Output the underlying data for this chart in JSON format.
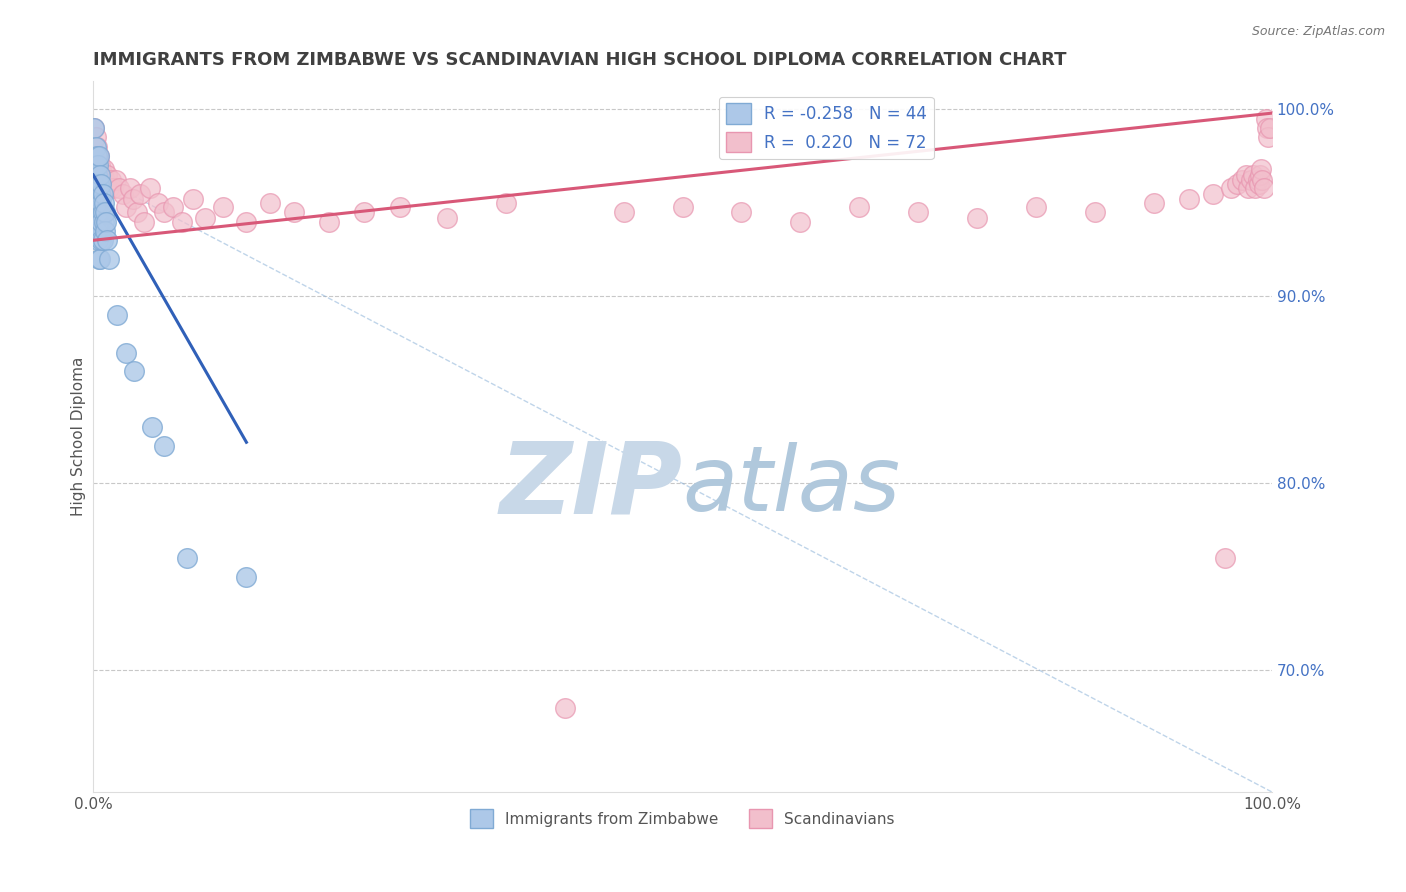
{
  "title": "IMMIGRANTS FROM ZIMBABWE VS SCANDINAVIAN HIGH SCHOOL DIPLOMA CORRELATION CHART",
  "source_text": "Source: ZipAtlas.com",
  "ylabel": "High School Diploma",
  "xlim": [
    0.0,
    1.0
  ],
  "ylim": [
    0.635,
    1.015
  ],
  "yticks": [
    0.7,
    0.8,
    0.9,
    1.0
  ],
  "ytick_labels": [
    "70.0%",
    "80.0%",
    "90.0%",
    "100.0%"
  ],
  "xtick_labels_left": "0.0%",
  "xtick_labels_right": "100.0%",
  "legend_R1": "-0.258",
  "legend_N1": "44",
  "legend_R2": "0.220",
  "legend_N2": "72",
  "blue_color": "#adc8e8",
  "blue_edge_color": "#80aad4",
  "pink_color": "#f2bfcc",
  "pink_edge_color": "#e896b0",
  "blue_line_color": "#3060b8",
  "pink_line_color": "#d85878",
  "title_color": "#404040",
  "watermark_zip_color": "#c8d8e8",
  "watermark_atlas_color": "#b0c8dc",
  "background_color": "#ffffff",
  "blue_scatter_x": [
    0.001,
    0.001,
    0.002,
    0.002,
    0.002,
    0.003,
    0.003,
    0.003,
    0.003,
    0.004,
    0.004,
    0.004,
    0.004,
    0.005,
    0.005,
    0.005,
    0.005,
    0.005,
    0.006,
    0.006,
    0.006,
    0.006,
    0.006,
    0.007,
    0.007,
    0.007,
    0.007,
    0.008,
    0.008,
    0.008,
    0.009,
    0.009,
    0.01,
    0.01,
    0.011,
    0.012,
    0.013,
    0.02,
    0.028,
    0.035,
    0.05,
    0.06,
    0.08,
    0.13
  ],
  "blue_scatter_y": [
    0.99,
    0.965,
    0.98,
    0.97,
    0.955,
    0.975,
    0.965,
    0.95,
    0.935,
    0.97,
    0.96,
    0.945,
    0.93,
    0.975,
    0.96,
    0.95,
    0.94,
    0.92,
    0.965,
    0.955,
    0.945,
    0.935,
    0.92,
    0.96,
    0.95,
    0.94,
    0.93,
    0.955,
    0.945,
    0.93,
    0.95,
    0.94,
    0.945,
    0.935,
    0.94,
    0.93,
    0.92,
    0.89,
    0.87,
    0.86,
    0.83,
    0.82,
    0.76,
    0.75
  ],
  "pink_scatter_x": [
    0.001,
    0.002,
    0.003,
    0.004,
    0.005,
    0.006,
    0.007,
    0.008,
    0.009,
    0.01,
    0.011,
    0.012,
    0.013,
    0.015,
    0.017,
    0.019,
    0.022,
    0.025,
    0.028,
    0.031,
    0.034,
    0.037,
    0.04,
    0.043,
    0.048,
    0.055,
    0.06,
    0.068,
    0.075,
    0.085,
    0.095,
    0.11,
    0.13,
    0.15,
    0.17,
    0.2,
    0.23,
    0.26,
    0.3,
    0.35,
    0.4,
    0.45,
    0.5,
    0.55,
    0.6,
    0.65,
    0.7,
    0.75,
    0.8,
    0.85,
    0.9,
    0.93,
    0.95,
    0.96,
    0.965,
    0.97,
    0.975,
    0.978,
    0.98,
    0.982,
    0.984,
    0.986,
    0.988,
    0.989,
    0.99,
    0.991,
    0.992,
    0.993,
    0.995,
    0.996,
    0.997,
    0.998
  ],
  "pink_scatter_y": [
    0.99,
    0.985,
    0.98,
    0.975,
    0.975,
    0.97,
    0.968,
    0.965,
    0.968,
    0.962,
    0.96,
    0.965,
    0.958,
    0.962,
    0.958,
    0.962,
    0.958,
    0.955,
    0.948,
    0.958,
    0.952,
    0.945,
    0.955,
    0.94,
    0.958,
    0.95,
    0.945,
    0.948,
    0.94,
    0.952,
    0.942,
    0.948,
    0.94,
    0.95,
    0.945,
    0.94,
    0.945,
    0.948,
    0.942,
    0.95,
    0.68,
    0.945,
    0.948,
    0.945,
    0.94,
    0.948,
    0.945,
    0.942,
    0.948,
    0.945,
    0.95,
    0.952,
    0.955,
    0.76,
    0.958,
    0.96,
    0.962,
    0.965,
    0.958,
    0.962,
    0.965,
    0.958,
    0.962,
    0.96,
    0.965,
    0.968,
    0.962,
    0.958,
    0.995,
    0.99,
    0.985,
    0.99
  ],
  "blue_line_x0": 0.0,
  "blue_line_y0": 0.965,
  "blue_line_x1": 0.13,
  "blue_line_y1": 0.822,
  "pink_line_x0": 0.0,
  "pink_line_y0": 0.93,
  "pink_line_x1": 1.0,
  "pink_line_y1": 0.998,
  "dash_line_x0": 0.0,
  "dash_line_y0": 0.965,
  "dash_line_x1": 1.0,
  "dash_line_y1": 0.635
}
